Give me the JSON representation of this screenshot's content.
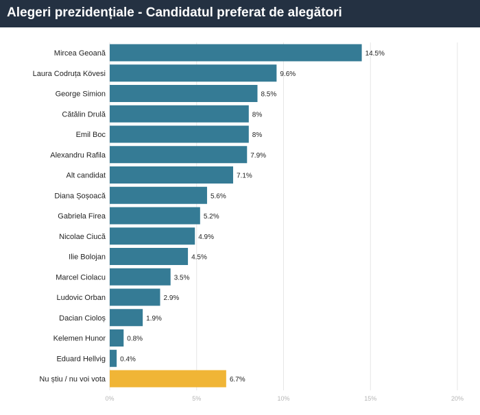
{
  "header": {
    "title": "Alegeri prezidențiale - Candidatul preferat de alegători"
  },
  "colors": {
    "header_background": "#243142",
    "bar_default": "#357b95",
    "bar_highlight": "#f0b536",
    "gridline": "#e6e6e6",
    "tick_text": "#b5b5b5"
  },
  "chart_data": {
    "type": "bar",
    "orientation": "horizontal",
    "title": "Alegeri prezidențiale - Candidatul preferat de alegători",
    "xlabel": "",
    "ylabel": "",
    "xlim": [
      0,
      20
    ],
    "grid": true,
    "legend": "none",
    "categories": [
      "Mircea Geoană",
      "Laura Codruța Kövesi",
      "George Simion",
      "Cătălin Drulă",
      "Emil Boc",
      "Alexandru Rafila",
      "Alt candidat",
      "Diana Șoșoacă",
      "Gabriela Firea",
      "Nicolae Ciucă",
      "Ilie Bolojan",
      "Marcel Ciolacu",
      "Ludovic Orban",
      "Dacian Cioloș",
      "Kelemen Hunor",
      "Eduard Hellvig",
      "Nu știu / nu voi vota"
    ],
    "values": [
      14.5,
      9.6,
      8.5,
      8,
      8,
      7.9,
      7.1,
      5.6,
      5.2,
      4.9,
      4.5,
      3.5,
      2.9,
      1.9,
      0.8,
      0.4,
      6.7
    ],
    "value_labels": [
      "14.5%",
      "9.6%",
      "8.5%",
      "8%",
      "8%",
      "7.9%",
      "7.1%",
      "5.6%",
      "5.2%",
      "4.9%",
      "4.5%",
      "3.5%",
      "2.9%",
      "1.9%",
      "0.8%",
      "0.4%",
      "6.7%"
    ],
    "highlight_category": "Nu știu / nu voi vota",
    "x_ticks": [
      0,
      5,
      10,
      15,
      20
    ],
    "x_tick_labels": [
      "0%",
      "5%",
      "10%",
      "15%",
      "20%"
    ]
  }
}
